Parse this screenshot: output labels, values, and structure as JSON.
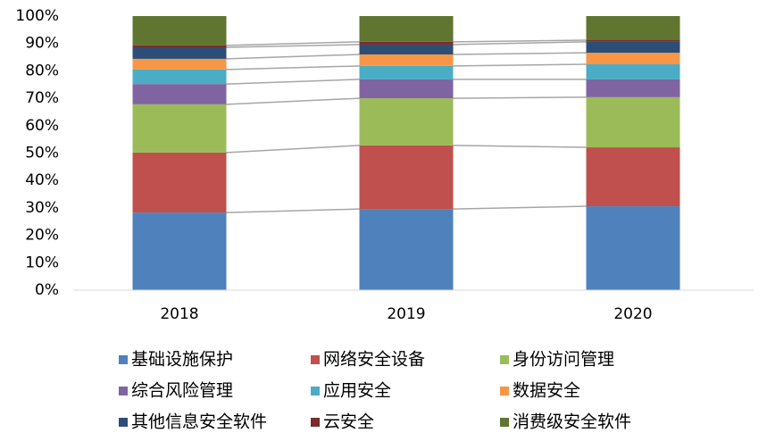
{
  "chart_data": {
    "type": "stacked_bar_100",
    "categories": [
      "2018",
      "2019",
      "2020"
    ],
    "series": [
      {
        "name": "基础设施保护",
        "color": "#4f81bd",
        "values": [
          28.3,
          29.6,
          30.6
        ]
      },
      {
        "name": "网络安全设备",
        "color": "#c0504d",
        "values": [
          21.9,
          23.2,
          21.5
        ]
      },
      {
        "name": "身份访问管理",
        "color": "#9bbb59",
        "values": [
          17.6,
          17.2,
          18.3
        ]
      },
      {
        "name": "综合风险管理",
        "color": "#8064a2",
        "values": [
          7.4,
          6.9,
          6.5
        ]
      },
      {
        "name": "应用安全",
        "color": "#4bacc6",
        "values": [
          5.3,
          4.9,
          5.5
        ]
      },
      {
        "name": "数据安全",
        "color": "#f79646",
        "values": [
          3.9,
          4.2,
          4.2
        ]
      },
      {
        "name": "其他信息安全软件",
        "color": "#2c4d75",
        "values": [
          4.2,
          3.6,
          4.0
        ]
      },
      {
        "name": "云安全",
        "color": "#772c2a",
        "values": [
          0.7,
          1.0,
          0.6
        ]
      },
      {
        "name": "消费级安全软件",
        "color": "#5f7530",
        "values": [
          10.7,
          9.4,
          8.8
        ]
      }
    ],
    "ylim": [
      0,
      100
    ],
    "yticks": [
      {
        "value": 0,
        "label": "0%"
      },
      {
        "value": 10,
        "label": "10%"
      },
      {
        "value": 20,
        "label": "20%"
      },
      {
        "value": 30,
        "label": "30%"
      },
      {
        "value": 40,
        "label": "40%"
      },
      {
        "value": 50,
        "label": "50%"
      },
      {
        "value": 60,
        "label": "60%"
      },
      {
        "value": 70,
        "label": "70%"
      },
      {
        "value": 80,
        "label": "80%"
      },
      {
        "value": 90,
        "label": "90%"
      },
      {
        "value": 100,
        "label": "100%"
      }
    ],
    "legend": "bottom"
  }
}
